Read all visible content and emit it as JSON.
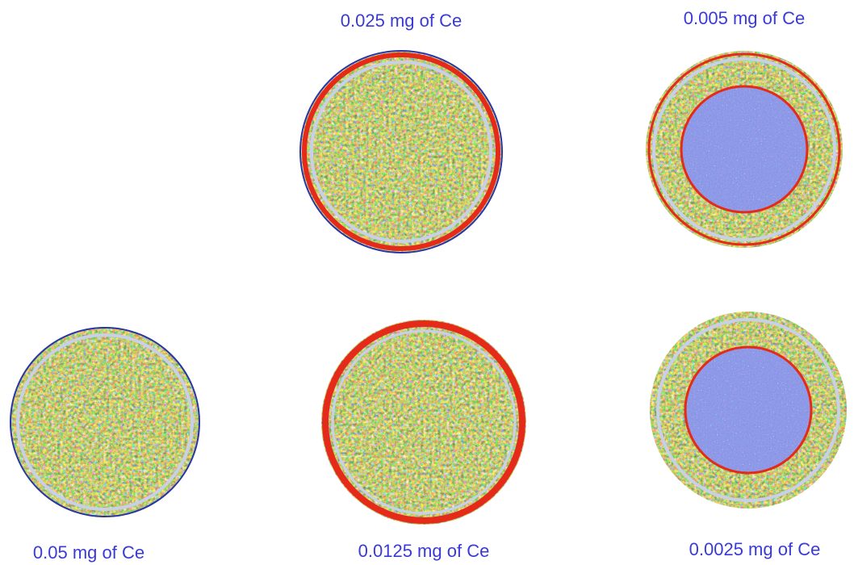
{
  "samples": [
    {
      "label": "0.025 mg of Ce"
    },
    {
      "label": "0.005 mg of Ce"
    },
    {
      "label": "0.05 mg of Ce"
    },
    {
      "label": "0.0125 mg of Ce"
    },
    {
      "label": "0.0025 mg of Ce"
    }
  ]
}
